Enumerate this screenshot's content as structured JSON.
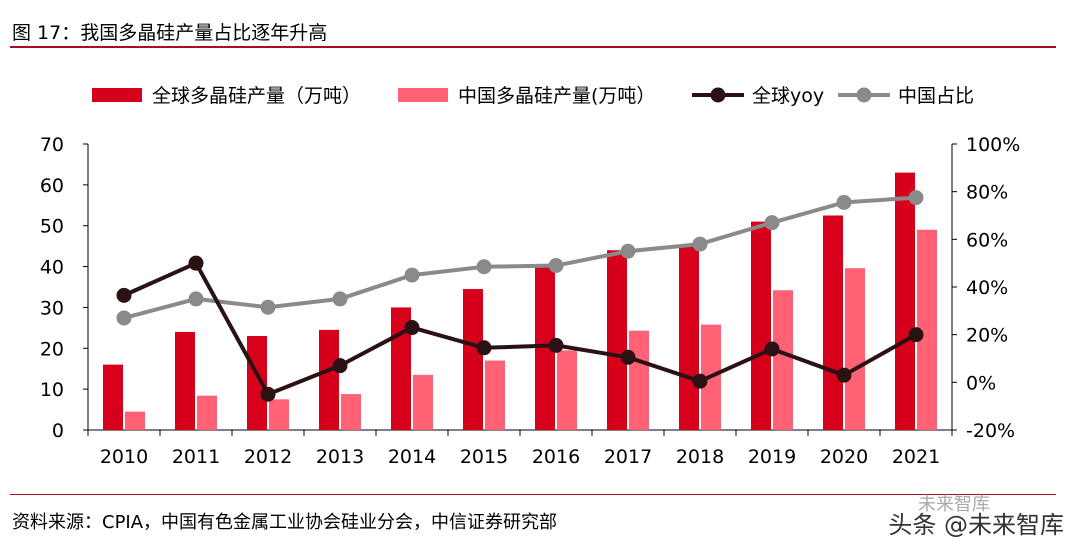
{
  "header": {
    "title": "图 17：我国多晶硅产量占比逐年升高"
  },
  "footer": {
    "source": "资料来源：CPIA，中国有色金属工业协会硅业分会，中信证券研究部",
    "watermark": "头条 @未来智库",
    "watermark_faint": "未来智库"
  },
  "colors": {
    "global_bar": "#d7001b",
    "china_bar": "#ff6275",
    "global_yoy": "#2a1214",
    "china_share": "#8a8a8a",
    "accent_rule": "#a8101e"
  },
  "chart_data": {
    "type": "bar",
    "categories": [
      "2010",
      "2011",
      "2012",
      "2013",
      "2014",
      "2015",
      "2016",
      "2017",
      "2018",
      "2019",
      "2020",
      "2021"
    ],
    "legend_position": "top",
    "grid": false,
    "left_axis": {
      "ylim": [
        0,
        70
      ],
      "ticks": [
        "0",
        "10",
        "20",
        "30",
        "40",
        "50",
        "60",
        "70"
      ]
    },
    "right_axis": {
      "ylim": [
        -20,
        100
      ],
      "ticks": [
        "-20%",
        "0%",
        "20%",
        "40%",
        "60%",
        "80%",
        "100%"
      ]
    },
    "series": [
      {
        "name": "全球多晶硅产量（万吨）",
        "kind": "bar",
        "axis": "left",
        "values": [
          16,
          24,
          23,
          24.5,
          30,
          34.5,
          40,
          44,
          45,
          51,
          52.5,
          63
        ]
      },
      {
        "name": "中国多晶硅产量(万吨）",
        "kind": "bar",
        "axis": "left",
        "values": [
          4.5,
          8.4,
          7.5,
          8.8,
          13.5,
          17,
          19.5,
          24.3,
          25.8,
          34.2,
          39.6,
          49
        ]
      },
      {
        "name": "全球yoy",
        "kind": "line",
        "axis": "right",
        "values": [
          36.5,
          50,
          -5,
          7,
          23,
          14.5,
          15.5,
          10.5,
          0.5,
          14,
          3,
          20
        ]
      },
      {
        "name": "中国占比",
        "kind": "line",
        "axis": "right",
        "values": [
          27,
          35,
          31.5,
          35,
          45,
          48.5,
          49,
          55,
          58,
          67,
          75.5,
          77.5
        ]
      }
    ]
  }
}
